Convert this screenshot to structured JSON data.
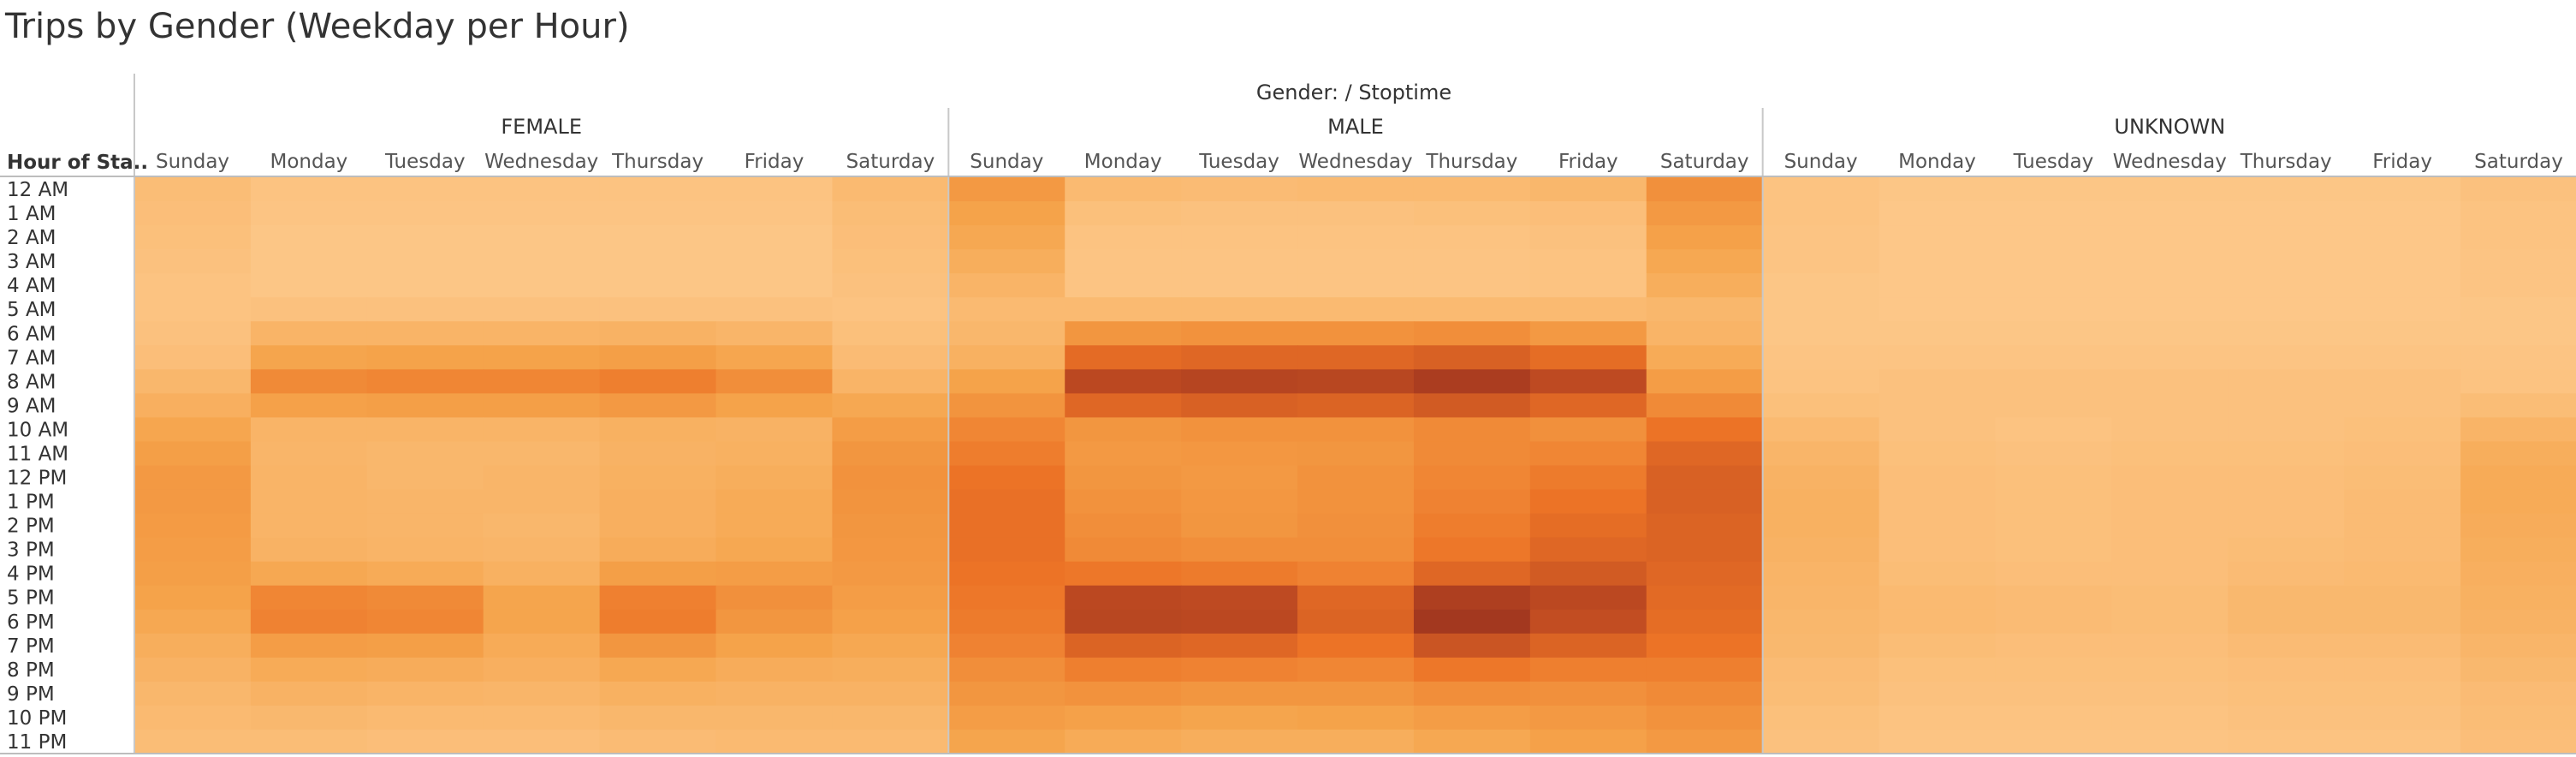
{
  "chart_data": {
    "type": "heatmap",
    "title": "Trips by Gender (Weekday per Hour)",
    "header_title": "Gender: / Stoptime",
    "row_header": "Hour of Sta..",
    "groups": [
      "FEMALE",
      "MALE",
      "UNKNOWN"
    ],
    "days": [
      "Sunday",
      "Monday",
      "Tuesday",
      "Wednesday",
      "Thursday",
      "Friday",
      "Saturday"
    ],
    "hours": [
      "12 AM",
      "1 AM",
      "2 AM",
      "3 AM",
      "4 AM",
      "5 AM",
      "6 AM",
      "7 AM",
      "8 AM",
      "9 AM",
      "10 AM",
      "11 AM",
      "12 PM",
      "1 PM",
      "2 PM",
      "3 PM",
      "4 PM",
      "5 PM",
      "6 PM",
      "7 PM",
      "8 PM",
      "9 PM",
      "10 PM",
      "11 PM"
    ],
    "intensity_scale": [
      0,
      100
    ],
    "color_scale": [
      "#fdc98b",
      "#f5a34a",
      "#ec7326",
      "#c24d22",
      "#a0361f"
    ],
    "values": {
      "FEMALE": [
        [
          8,
          4,
          4,
          4,
          4,
          4,
          10
        ],
        [
          7,
          3,
          3,
          3,
          3,
          3,
          8
        ],
        [
          6,
          2,
          2,
          2,
          2,
          2,
          7
        ],
        [
          5,
          2,
          2,
          2,
          2,
          2,
          6
        ],
        [
          4,
          2,
          2,
          2,
          2,
          2,
          5
        ],
        [
          4,
          5,
          5,
          5,
          5,
          5,
          4
        ],
        [
          5,
          14,
          14,
          14,
          15,
          13,
          6
        ],
        [
          7,
          24,
          25,
          25,
          27,
          23,
          9
        ],
        [
          12,
          38,
          40,
          40,
          44,
          36,
          14
        ],
        [
          17,
          26,
          27,
          27,
          30,
          25,
          22
        ],
        [
          23,
          14,
          14,
          14,
          16,
          15,
          28
        ],
        [
          27,
          13,
          12,
          12,
          15,
          16,
          32
        ],
        [
          30,
          14,
          12,
          13,
          16,
          18,
          34
        ],
        [
          30,
          14,
          13,
          13,
          17,
          20,
          33
        ],
        [
          29,
          14,
          13,
          12,
          17,
          20,
          32
        ],
        [
          28,
          15,
          14,
          13,
          19,
          22,
          31
        ],
        [
          27,
          22,
          20,
          16,
          27,
          28,
          30
        ],
        [
          25,
          40,
          38,
          24,
          43,
          35,
          28
        ],
        [
          22,
          42,
          40,
          24,
          45,
          32,
          26
        ],
        [
          18,
          28,
          27,
          20,
          32,
          25,
          22
        ],
        [
          15,
          20,
          19,
          17,
          22,
          19,
          18
        ],
        [
          12,
          15,
          14,
          13,
          16,
          15,
          15
        ],
        [
          10,
          11,
          10,
          10,
          12,
          12,
          12
        ],
        [
          8,
          8,
          7,
          7,
          9,
          10,
          10
        ]
      ],
      "MALE": [
        [
          30,
          10,
          9,
          10,
          10,
          12,
          35
        ],
        [
          25,
          6,
          5,
          5,
          6,
          7,
          30
        ],
        [
          22,
          4,
          4,
          4,
          4,
          5,
          26
        ],
        [
          18,
          3,
          3,
          3,
          3,
          4,
          22
        ],
        [
          14,
          3,
          3,
          3,
          3,
          4,
          18
        ],
        [
          10,
          10,
          10,
          10,
          10,
          10,
          12
        ],
        [
          12,
          32,
          34,
          34,
          36,
          30,
          14
        ],
        [
          16,
          55,
          58,
          58,
          62,
          54,
          20
        ],
        [
          25,
          80,
          84,
          82,
          92,
          78,
          28
        ],
        [
          33,
          58,
          62,
          60,
          66,
          58,
          38
        ],
        [
          40,
          32,
          34,
          34,
          38,
          35,
          50
        ],
        [
          45,
          30,
          31,
          32,
          38,
          40,
          58
        ],
        [
          50,
          32,
          30,
          34,
          40,
          46,
          62
        ],
        [
          52,
          34,
          31,
          34,
          42,
          50,
          62
        ],
        [
          52,
          36,
          32,
          35,
          45,
          54,
          60
        ],
        [
          52,
          38,
          36,
          36,
          48,
          58,
          60
        ],
        [
          50,
          48,
          46,
          42,
          58,
          66,
          58
        ],
        [
          48,
          80,
          78,
          58,
          90,
          80,
          56
        ],
        [
          46,
          82,
          80,
          60,
          98,
          75,
          54
        ],
        [
          42,
          60,
          58,
          50,
          70,
          60,
          50
        ],
        [
          36,
          44,
          42,
          40,
          48,
          44,
          44
        ],
        [
          32,
          34,
          32,
          32,
          36,
          35,
          38
        ],
        [
          28,
          26,
          24,
          25,
          28,
          30,
          34
        ],
        [
          24,
          20,
          18,
          18,
          22,
          26,
          30
        ]
      ],
      "UNKNOWN": [
        [
          4,
          2,
          2,
          2,
          2,
          2,
          5
        ],
        [
          4,
          1,
          1,
          1,
          1,
          1,
          4
        ],
        [
          3,
          1,
          1,
          1,
          1,
          1,
          4
        ],
        [
          3,
          1,
          1,
          1,
          1,
          1,
          3
        ],
        [
          2,
          1,
          1,
          1,
          1,
          1,
          3
        ],
        [
          2,
          1,
          1,
          1,
          1,
          1,
          2
        ],
        [
          2,
          2,
          2,
          2,
          2,
          2,
          2
        ],
        [
          3,
          3,
          3,
          3,
          3,
          3,
          3
        ],
        [
          4,
          5,
          5,
          5,
          5,
          5,
          4
        ],
        [
          6,
          5,
          5,
          5,
          5,
          5,
          8
        ],
        [
          10,
          5,
          4,
          5,
          5,
          6,
          14
        ],
        [
          13,
          6,
          5,
          6,
          6,
          7,
          18
        ],
        [
          15,
          7,
          6,
          7,
          7,
          8,
          20
        ],
        [
          16,
          7,
          6,
          7,
          7,
          9,
          20
        ],
        [
          16,
          7,
          6,
          7,
          7,
          9,
          19
        ],
        [
          15,
          7,
          6,
          7,
          8,
          9,
          18
        ],
        [
          14,
          8,
          7,
          7,
          9,
          10,
          17
        ],
        [
          13,
          10,
          9,
          8,
          11,
          11,
          16
        ],
        [
          12,
          10,
          9,
          8,
          11,
          11,
          15
        ],
        [
          11,
          8,
          7,
          7,
          9,
          9,
          13
        ],
        [
          9,
          6,
          6,
          6,
          7,
          7,
          11
        ],
        [
          8,
          5,
          5,
          5,
          6,
          6,
          9
        ],
        [
          6,
          4,
          4,
          4,
          5,
          5,
          8
        ],
        [
          5,
          3,
          3,
          3,
          4,
          4,
          7
        ]
      ]
    }
  }
}
